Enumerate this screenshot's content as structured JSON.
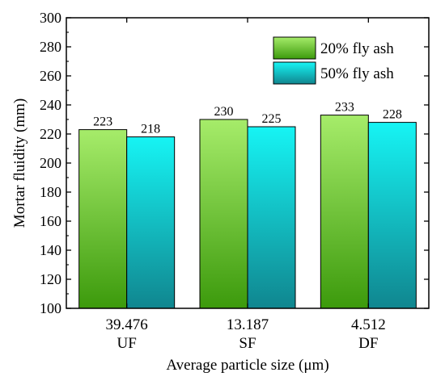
{
  "chart_data": {
    "type": "bar",
    "title": "",
    "xlabel": "Average particle size (μm)",
    "ylabel": "Mortar fluidity (mm)",
    "ylim": [
      100,
      300
    ],
    "yticks": [
      100,
      120,
      140,
      160,
      180,
      200,
      220,
      240,
      260,
      280,
      300
    ],
    "categories": [
      {
        "size": "39.476",
        "name": "UF"
      },
      {
        "size": "13.187",
        "name": "SF"
      },
      {
        "size": "4.512",
        "name": "DF"
      }
    ],
    "series": [
      {
        "name": "20% fly ash",
        "values": [
          223,
          230,
          233
        ],
        "color_top": "#a6ec6a",
        "color_bottom": "#3c9a0c"
      },
      {
        "name": "50% fly ash",
        "values": [
          218,
          225,
          228
        ],
        "color_top": "#16f4f4",
        "color_bottom": "#10868f"
      }
    ],
    "legend_position": "top-right",
    "grid": false
  }
}
